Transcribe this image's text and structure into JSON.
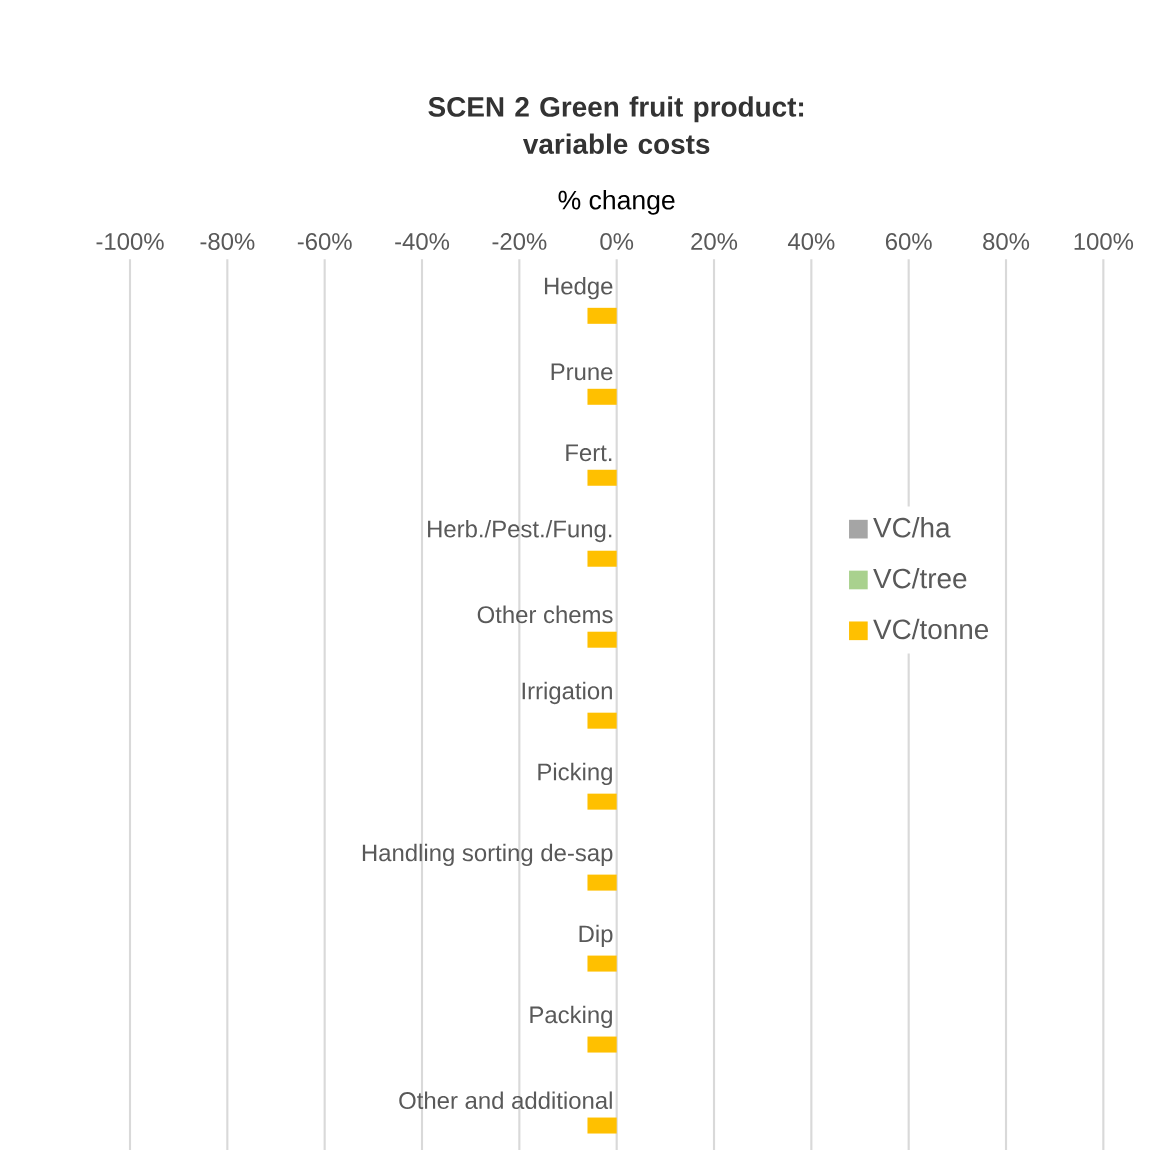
{
  "chart_data": {
    "type": "bar",
    "orientation": "horizontal",
    "title": "SCEN 2 Green fruit product:\nvariable costs",
    "xlabel": "% change",
    "categories": [
      "Hedge",
      "Prune",
      "Fert.",
      "Herb./Pest./Fung.",
      "Other chems",
      "Irrigation",
      "Picking",
      "Handling sorting de-sap",
      "Dip",
      "Packing",
      "Other and additional"
    ],
    "series": [
      {
        "name": "VC/ha",
        "color": "#a5a5a5",
        "values": [
          0,
          0,
          0,
          0,
          0,
          0,
          0,
          0,
          0,
          0,
          0
        ]
      },
      {
        "name": "VC/tree",
        "color": "#a9d18e",
        "values": [
          0,
          0,
          0,
          0,
          0,
          0,
          0,
          0,
          0,
          0,
          0
        ]
      },
      {
        "name": "VC/tonne",
        "color": "#ffc000",
        "values": [
          -6,
          -6,
          -6,
          -6,
          -6,
          -6,
          -6,
          -6,
          -6,
          -6,
          -6
        ]
      }
    ],
    "xlim": [
      -100,
      100
    ],
    "xticks": [
      {
        "value": -100,
        "label": "-100%"
      },
      {
        "value": -80,
        "label": "-80%"
      },
      {
        "value": -60,
        "label": "-60%"
      },
      {
        "value": -40,
        "label": "-40%"
      },
      {
        "value": -20,
        "label": "-20%"
      },
      {
        "value": 0,
        "label": "0%"
      },
      {
        "value": 20,
        "label": "20%"
      },
      {
        "value": 40,
        "label": "40%"
      },
      {
        "value": 60,
        "label": "60%"
      },
      {
        "value": 80,
        "label": "80%"
      },
      {
        "value": 100,
        "label": "100%"
      }
    ],
    "grid": "x",
    "legend": "right"
  }
}
